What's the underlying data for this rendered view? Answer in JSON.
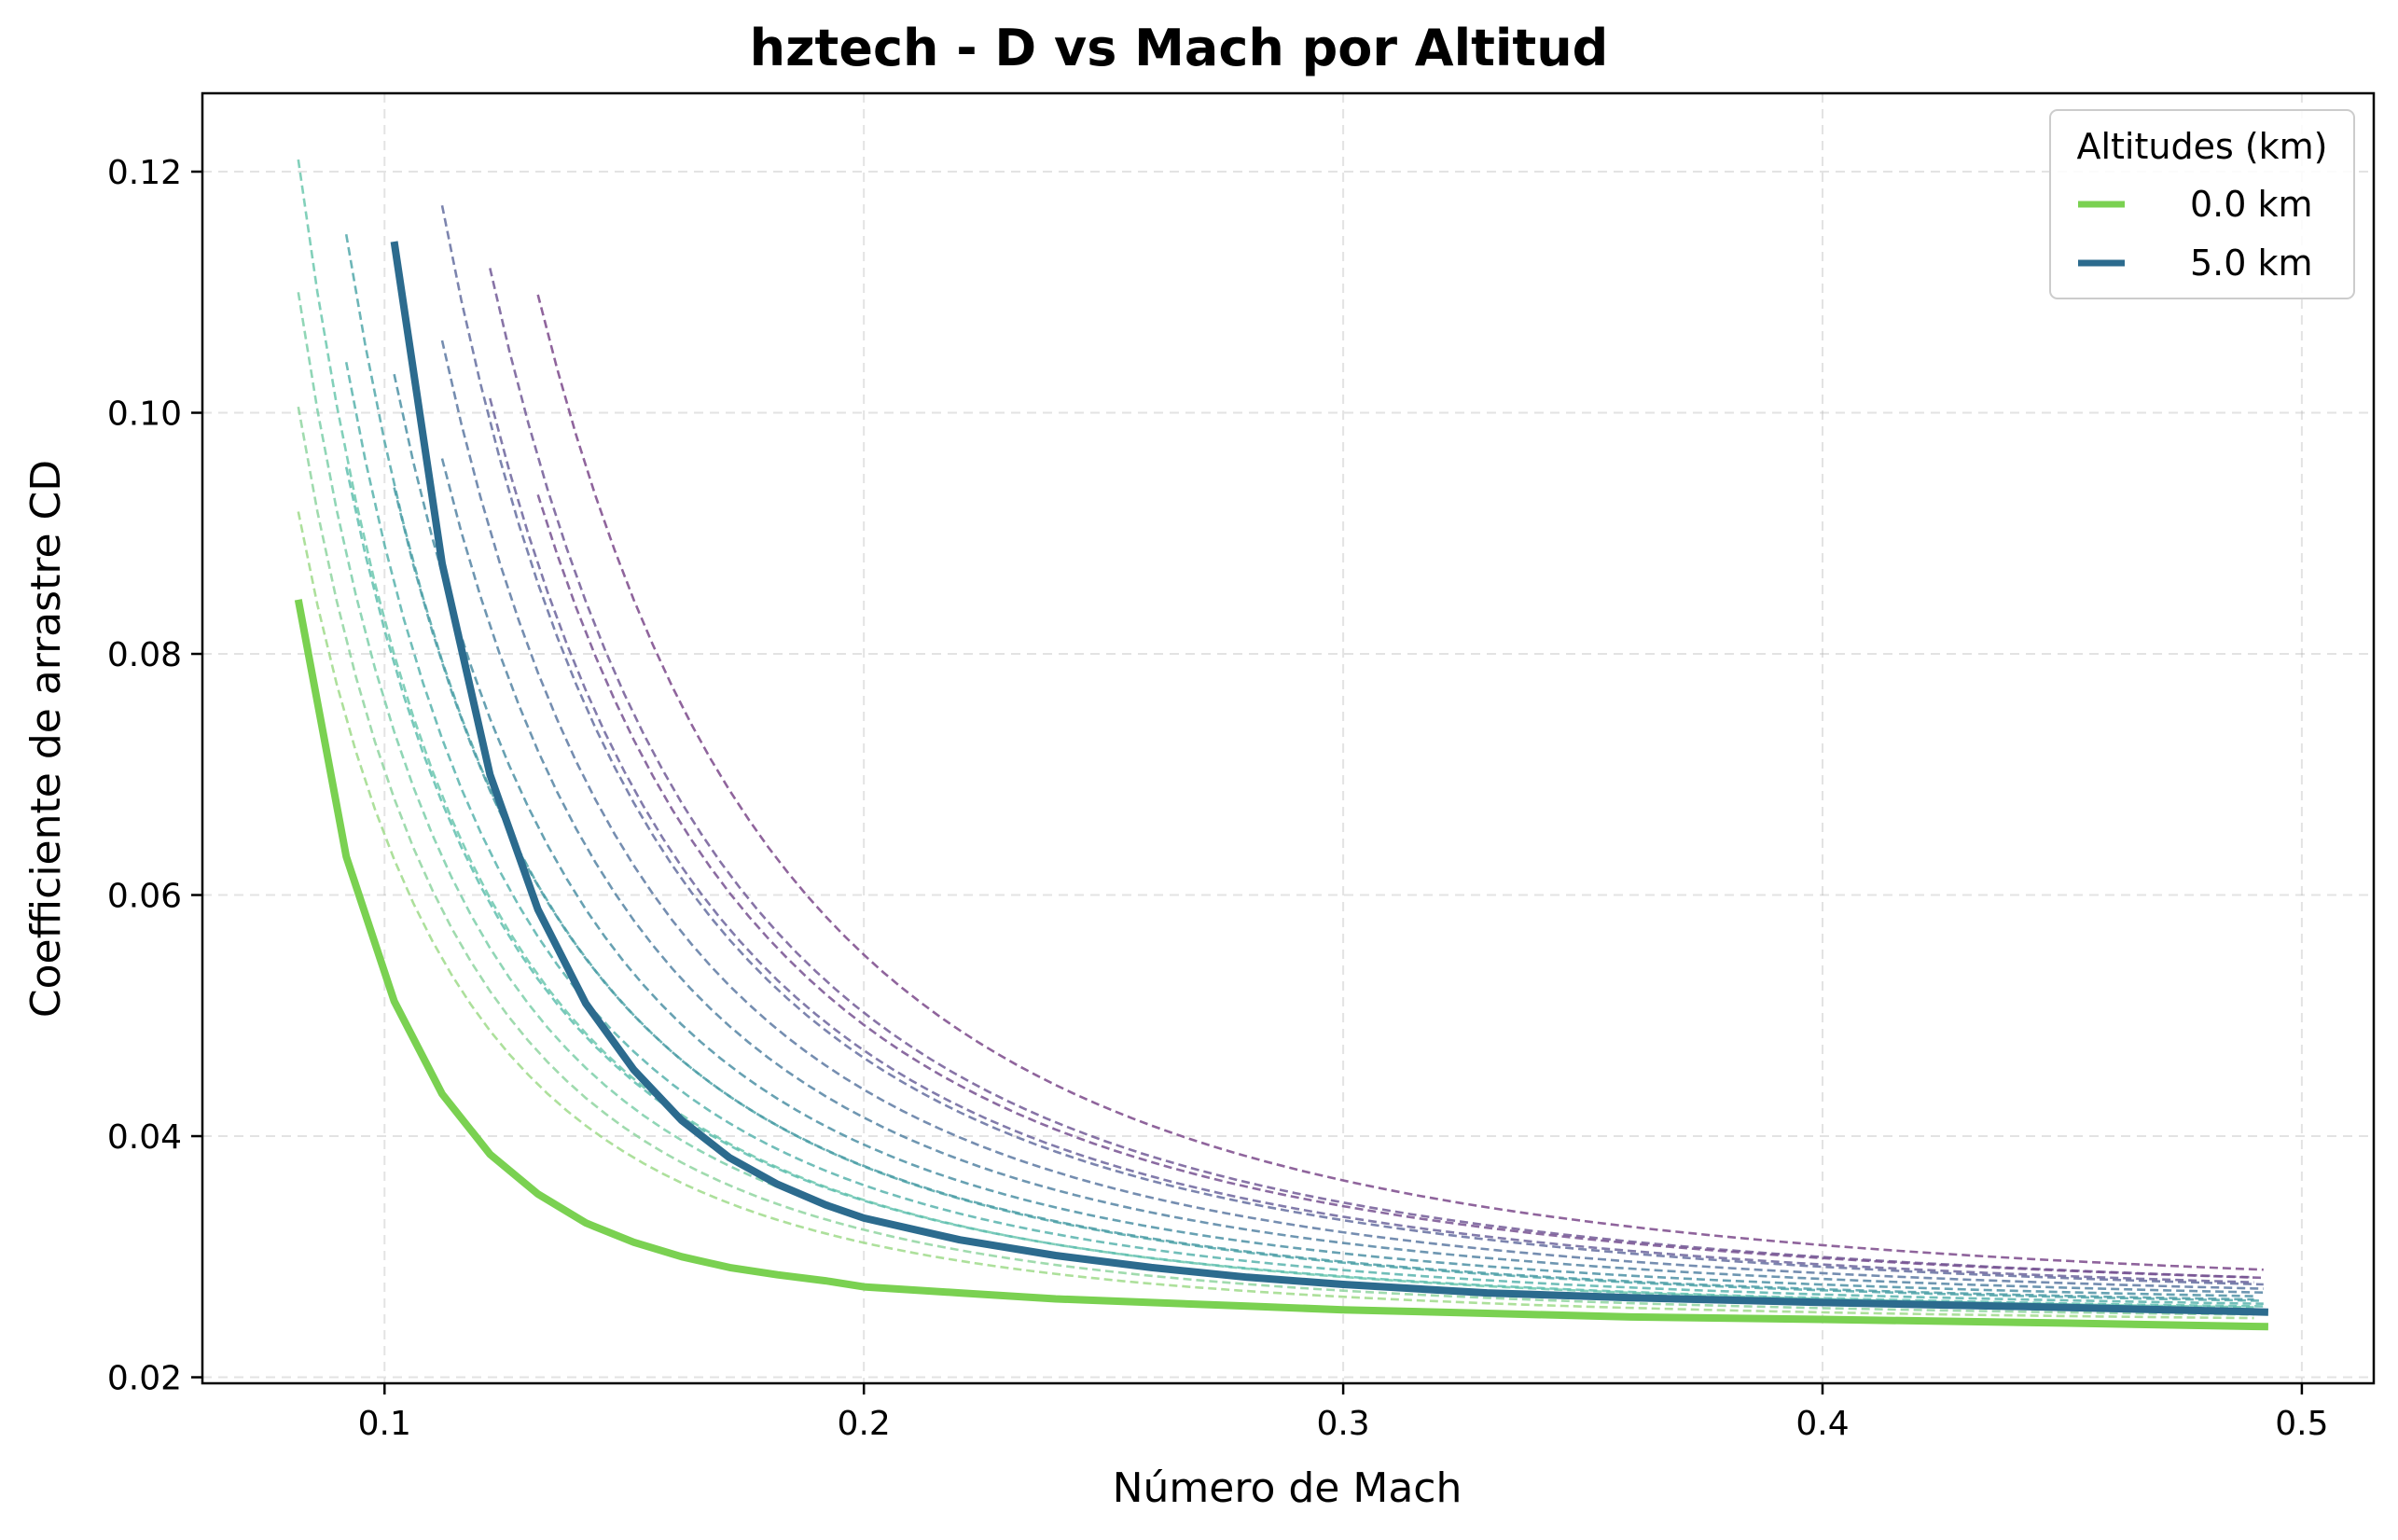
{
  "chart_data": {
    "type": "line",
    "title": "hztech - D vs Mach por Altitud",
    "xlabel": "Número de Mach",
    "ylabel": "Coefficiente de arrastre CD",
    "xlim": [
      0.062,
      0.515
    ],
    "ylim": [
      0.0195,
      0.1265
    ],
    "x_ticks": [
      0.1,
      0.2,
      0.3,
      0.4,
      0.5
    ],
    "x_tick_labels": [
      "0.1",
      "0.2",
      "0.3",
      "0.4",
      "0.5"
    ],
    "y_ticks": [
      0.02,
      0.04,
      0.06,
      0.08,
      0.1,
      0.12
    ],
    "y_tick_labels": [
      "0.02",
      "0.04",
      "0.06",
      "0.08",
      "0.10",
      "0.12"
    ],
    "grid": true,
    "legend": {
      "title": "Altitudes (km)",
      "position": "top-right",
      "entries": [
        "0.0 km",
        "5.0 km"
      ]
    },
    "series": [
      {
        "name": "0.0 km",
        "style": "solid",
        "color": "#7AD151",
        "x": [
          0.082,
          0.092,
          0.102,
          0.112,
          0.122,
          0.132,
          0.142,
          0.152,
          0.162,
          0.172,
          0.182,
          0.192,
          0.2,
          0.22,
          0.24,
          0.26,
          0.28,
          0.3,
          0.33,
          0.36,
          0.4,
          0.45,
          0.493
        ],
        "values": [
          0.0845,
          0.0632,
          0.0512,
          0.0435,
          0.0385,
          0.0352,
          0.0328,
          0.0312,
          0.03,
          0.0291,
          0.0285,
          0.028,
          0.0275,
          0.027,
          0.0265,
          0.0262,
          0.0259,
          0.0256,
          0.0253,
          0.025,
          0.0248,
          0.0245,
          0.0242
        ]
      },
      {
        "name": "5.0 km",
        "style": "solid",
        "color": "#2C6B8E",
        "x": [
          0.102,
          0.112,
          0.122,
          0.132,
          0.142,
          0.152,
          0.162,
          0.172,
          0.182,
          0.192,
          0.2,
          0.22,
          0.24,
          0.26,
          0.28,
          0.3,
          0.33,
          0.36,
          0.4,
          0.45,
          0.493
        ],
        "values": [
          0.1142,
          0.0875,
          0.07,
          0.0588,
          0.051,
          0.0455,
          0.0413,
          0.0382,
          0.036,
          0.0343,
          0.0332,
          0.0314,
          0.0301,
          0.0291,
          0.0283,
          0.0277,
          0.027,
          0.0266,
          0.0262,
          0.0258,
          0.0254
        ]
      },
      {
        "style": "dashed",
        "color": "#9FDA8A",
        "x0": 0.082,
        "c0": 0.0918,
        "cinf": 0.0242
      },
      {
        "style": "dashed",
        "color": "#8FD5A0",
        "x0": 0.082,
        "c0": 0.1005,
        "cinf": 0.0244
      },
      {
        "style": "dashed",
        "color": "#7CCFA9",
        "x0": 0.082,
        "c0": 0.11,
        "cinf": 0.0246
      },
      {
        "style": "dashed",
        "color": "#6CC8AE",
        "x0": 0.082,
        "c0": 0.121,
        "cinf": 0.0248
      },
      {
        "style": "dashed",
        "color": "#5FBEAF",
        "x0": 0.092,
        "c0": 0.0955,
        "cinf": 0.0249
      },
      {
        "style": "dashed",
        "color": "#58B3AD",
        "x0": 0.092,
        "c0": 0.1042,
        "cinf": 0.025
      },
      {
        "style": "dashed",
        "color": "#52A8AA",
        "x0": 0.092,
        "c0": 0.1148,
        "cinf": 0.0251
      },
      {
        "style": "dashed",
        "color": "#4E9DA7",
        "x0": 0.102,
        "c0": 0.0938,
        "cinf": 0.0252
      },
      {
        "style": "dashed",
        "color": "#4C91A4",
        "x0": 0.102,
        "c0": 0.1032,
        "cinf": 0.0253
      },
      {
        "style": "dashed",
        "color": "#5584A3",
        "x0": 0.112,
        "c0": 0.0962,
        "cinf": 0.0254
      },
      {
        "style": "dashed",
        "color": "#5D79A2",
        "x0": 0.112,
        "c0": 0.106,
        "cinf": 0.0255
      },
      {
        "style": "dashed",
        "color": "#656EA0",
        "x0": 0.112,
        "c0": 0.1172,
        "cinf": 0.0256
      },
      {
        "style": "dashed",
        "color": "#6C649C",
        "x0": 0.122,
        "c0": 0.1012,
        "cinf": 0.0257
      },
      {
        "style": "dashed",
        "color": "#725A97",
        "x0": 0.122,
        "c0": 0.112,
        "cinf": 0.0258
      },
      {
        "style": "dashed",
        "color": "#775191",
        "x0": 0.132,
        "c0": 0.0932,
        "cinf": 0.0259
      },
      {
        "style": "dashed",
        "color": "#7B498B",
        "x0": 0.132,
        "c0": 0.1098,
        "cinf": 0.026
      }
    ]
  }
}
